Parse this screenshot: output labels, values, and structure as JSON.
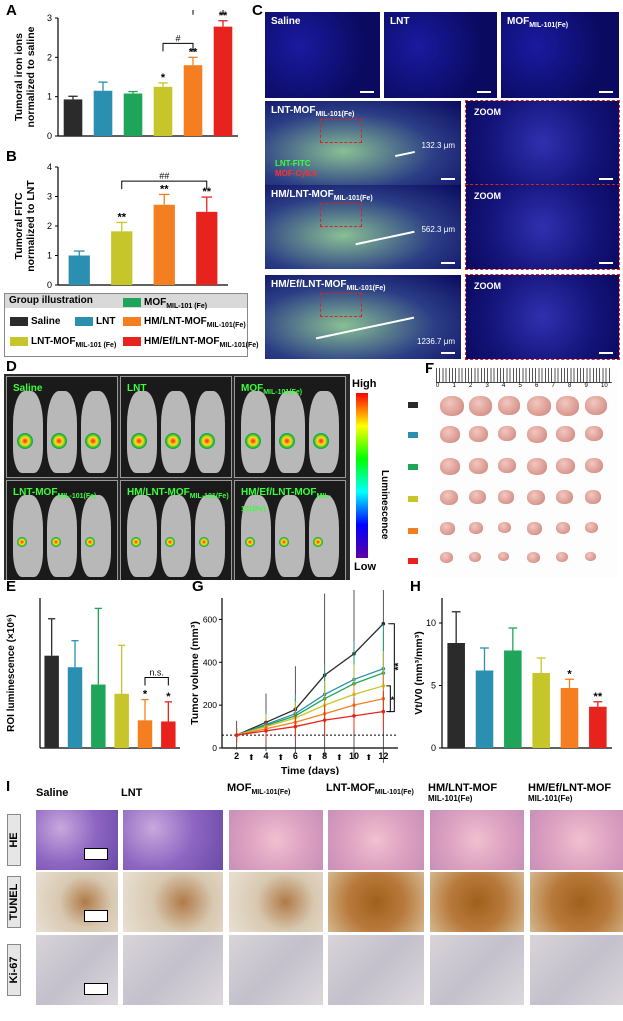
{
  "panels": {
    "A": "A",
    "B": "B",
    "C": "C",
    "D": "D",
    "E": "E",
    "F": "F",
    "G": "G",
    "H": "H",
    "I": "I"
  },
  "colors": {
    "saline": "#2b2b2b",
    "lnt": "#2a8fb0",
    "mof": "#1fa55a",
    "lnt_mof": "#c6c62a",
    "hm": "#f57f20",
    "hm_ef": "#e8231e"
  },
  "chart_data": [
    {
      "id": "A",
      "type": "bar",
      "ylabel": "Tumoral iron ions normalized to saline",
      "ylim": [
        0,
        3
      ],
      "yticks": [
        "0",
        "1",
        "2",
        "3"
      ],
      "values": [
        0.93,
        1.15,
        1.08,
        1.25,
        1.8,
        2.78
      ],
      "errors": [
        0.08,
        0.22,
        0.05,
        0.1,
        0.2,
        0.15
      ],
      "stars": [
        "",
        "",
        "",
        "*",
        "**",
        "**"
      ],
      "brackets": [
        {
          "from": 3,
          "to": 4,
          "label": "#"
        },
        {
          "from": 4,
          "to": 5,
          "label": "##"
        }
      ]
    },
    {
      "id": "B",
      "type": "bar",
      "ylabel": "Tumoral FITC normalized to LNT",
      "ylim": [
        0,
        4
      ],
      "yticks": [
        "0",
        "1",
        "2",
        "3",
        "4"
      ],
      "values": [
        1.0,
        1.82,
        2.72,
        2.48
      ],
      "errors": [
        0.15,
        0.3,
        0.35,
        0.5
      ],
      "stars": [
        "",
        "**",
        "**",
        "**"
      ],
      "brackets": [
        {
          "from": 1,
          "to": 3,
          "label": "##"
        }
      ]
    },
    {
      "id": "E",
      "type": "bar",
      "ylabel": "ROI luminescence (×10⁶)",
      "ylim": [
        0,
        13
      ],
      "values": [
        8.0,
        7.0,
        5.5,
        4.7,
        2.4,
        2.3
      ],
      "errors": [
        3.2,
        2.3,
        6.6,
        4.2,
        1.8,
        1.7
      ],
      "stars": [
        "",
        "",
        "",
        "",
        "*",
        "*"
      ],
      "brackets": [
        {
          "from": 4,
          "to": 5,
          "label": "n.s."
        }
      ]
    },
    {
      "id": "G",
      "type": "line",
      "ylabel": "Tumor volume (mm³)",
      "xlabel": "Time (days)",
      "x": [
        2,
        4,
        6,
        8,
        10,
        12
      ],
      "xticks": [
        "2",
        "4",
        "6",
        "8",
        "10",
        "12"
      ],
      "ylim": [
        0,
        700
      ],
      "yticks": [
        "0",
        "200",
        "400",
        "600"
      ],
      "series": [
        {
          "values": [
            60,
            120,
            180,
            340,
            440,
            580
          ]
        },
        {
          "values": [
            60,
            110,
            160,
            250,
            320,
            370
          ]
        },
        {
          "values": [
            60,
            105,
            150,
            230,
            300,
            350
          ]
        },
        {
          "values": [
            60,
            100,
            140,
            200,
            250,
            290
          ]
        },
        {
          "values": [
            60,
            90,
            120,
            160,
            200,
            230
          ]
        },
        {
          "values": [
            60,
            80,
            100,
            130,
            150,
            170
          ]
        }
      ],
      "sig": [
        "**",
        "*"
      ]
    },
    {
      "id": "H",
      "type": "bar",
      "ylabel": "Vt/V0 (mm³/mm³)",
      "ylim": [
        0,
        12
      ],
      "yticks": [
        "0",
        "5",
        "10"
      ],
      "values": [
        8.4,
        6.2,
        7.8,
        6.0,
        4.8,
        3.3
      ],
      "errors": [
        2.5,
        1.8,
        1.8,
        1.2,
        0.7,
        0.4
      ],
      "stars": [
        "",
        "",
        "",
        "",
        "*",
        "**"
      ]
    }
  ],
  "legend": {
    "title": "Group illustration",
    "items": [
      {
        "label": "Saline",
        "color": "#2b2b2b"
      },
      {
        "label": "LNT",
        "color": "#2a8fb0"
      },
      {
        "label": "MOF",
        "sub": "MIL-101 (Fe)",
        "color": "#1fa55a"
      },
      {
        "label": "LNT-MOF",
        "sub": "MIL-101 (Fe)",
        "color": "#c6c62a"
      },
      {
        "label": "HM/LNT-MOF",
        "sub": "MIL-101(Fe)",
        "color": "#f57f20"
      },
      {
        "label": "HM/Ef/LNT-MOF",
        "sub": "MIL-101(Fe)",
        "color": "#e8231e"
      }
    ]
  },
  "C": {
    "top": [
      {
        "main": "Saline",
        "sub": ""
      },
      {
        "main": "LNT",
        "sub": ""
      },
      {
        "main": "MOF",
        "sub": "MIL-101(Fe)"
      }
    ],
    "rows": [
      {
        "main": "LNT-MOF",
        "sub": "MIL-101(Fe)",
        "dist": "132.3 μm",
        "stain1": "LNT-FITC",
        "stain2": "MOF-Cy5.5"
      },
      {
        "main": "HM/LNT-MOF",
        "sub": "MIL-101(Fe)",
        "dist": "562.3 μm"
      },
      {
        "main": "HM/Ef/LNT-MOF",
        "sub": "MIL-101(Fe)",
        "dist": "1236.7 μm"
      }
    ],
    "zoom": "ZOOM"
  },
  "D": {
    "top": [
      "Saline",
      "LNT",
      "MOF"
    ],
    "top_sub": "MIL-101(Fe)",
    "bottom": [
      {
        "main": "LNT-MOF",
        "sub": "MIL-101(Fe)"
      },
      {
        "main": "HM/LNT-MOF",
        "sub": "MIL-101(Fe)"
      },
      {
        "main": "HM/Ef/LNT-MOF",
        "sub": "MIL-101(Fe)"
      }
    ],
    "scale_high": "High",
    "scale_low": "Low",
    "scale_label": "Luminescence"
  },
  "F": {
    "ruler": [
      "0",
      "1",
      "2",
      "3",
      "4",
      "5",
      "6",
      "7",
      "8",
      "9",
      "10"
    ]
  },
  "I": {
    "cols": [
      {
        "main": "Saline",
        "sub": ""
      },
      {
        "main": "LNT",
        "sub": ""
      },
      {
        "main": "MOF",
        "sub": "MIL-101(Fe)"
      },
      {
        "main": "LNT-MOF",
        "sub": "MIL-101(Fe)"
      },
      {
        "main": "HM/LNT-MOF",
        "sub": "MIL-101(Fe)"
      },
      {
        "main": "HM/Ef/LNT-MOF",
        "sub": "MIL-101(Fe)"
      }
    ],
    "rows": [
      "HE",
      "TUNEL",
      "Ki-67"
    ]
  }
}
